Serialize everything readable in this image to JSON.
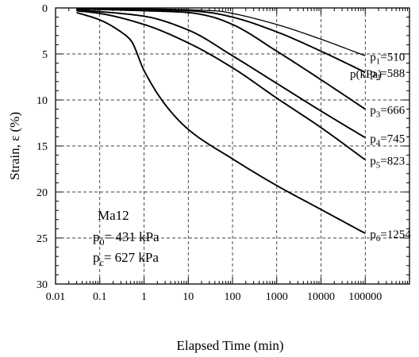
{
  "chart_data": {
    "type": "line",
    "xlabel": "Elapsed Time (min)",
    "ylabel": "Strain, ε (%)",
    "x_scale": "log",
    "xlim": [
      0.01,
      1000000
    ],
    "ylim": [
      0,
      30
    ],
    "y_inverted": true,
    "grid": "dashed",
    "x_ticks": [
      {
        "v": 0.01,
        "t": "0.01"
      },
      {
        "v": 0.1,
        "t": "0.1"
      },
      {
        "v": 1,
        "t": "1"
      },
      {
        "v": 10,
        "t": "10"
      },
      {
        "v": 100,
        "t": "100"
      },
      {
        "v": 1000,
        "t": "1000"
      },
      {
        "v": 10000,
        "t": "10000"
      },
      {
        "v": 100000,
        "t": "100000"
      }
    ],
    "y_ticks": [
      {
        "v": 0,
        "t": "0"
      },
      {
        "v": 5,
        "t": "5"
      },
      {
        "v": 10,
        "t": "10"
      },
      {
        "v": 15,
        "t": "15"
      },
      {
        "v": 20,
        "t": "20"
      },
      {
        "v": 25,
        "t": "25"
      },
      {
        "v": 30,
        "t": "30"
      }
    ],
    "legend_title": "p(kPa)",
    "series": [
      {
        "name": "p1=510",
        "sym": "p",
        "sub": "1",
        "val": "=510",
        "x": [
          0.03,
          1,
          10,
          50,
          100,
          1000,
          10000,
          100000
        ],
        "y": [
          0.1,
          0.1,
          0.2,
          0.35,
          0.6,
          1.8,
          3.4,
          5.2
        ]
      },
      {
        "name": "p2=588",
        "sym": "p",
        "sub": "2",
        "val": "=588",
        "x": [
          0.03,
          1,
          10,
          30,
          100,
          1000,
          10000,
          100000
        ],
        "y": [
          0.1,
          0.2,
          0.3,
          0.5,
          1.0,
          2.6,
          4.7,
          7.0
        ]
      },
      {
        "name": "p3=666",
        "sym": "p",
        "sub": "3",
        "val": "=666",
        "x": [
          0.03,
          1,
          10,
          30,
          100,
          1000,
          10000,
          100000
        ],
        "y": [
          0.1,
          0.3,
          0.5,
          0.9,
          1.8,
          4.7,
          7.8,
          11.0
        ]
      },
      {
        "name": "p4=745",
        "sym": "p",
        "sub": "4",
        "val": "=745",
        "x": [
          0.03,
          1,
          10,
          100,
          1000,
          10000,
          100000
        ],
        "y": [
          0.2,
          0.9,
          2.4,
          5.2,
          8.2,
          11.2,
          14.1
        ]
      },
      {
        "name": "p5=823",
        "sym": "p",
        "sub": "5",
        "val": "=823",
        "x": [
          0.03,
          0.1,
          1,
          10,
          100,
          1000,
          10000,
          100000
        ],
        "y": [
          0.3,
          0.6,
          1.8,
          3.8,
          6.5,
          9.8,
          13.0,
          16.5
        ]
      },
      {
        "name": "p6=1254",
        "sym": "p",
        "sub": "6",
        "val": "=1254",
        "x": [
          0.03,
          0.1,
          0.3,
          0.5,
          1,
          3,
          10,
          100,
          1000,
          10000,
          100000
        ],
        "y": [
          0.5,
          1.3,
          2.6,
          3.5,
          6.8,
          10.5,
          13.2,
          16.4,
          19.3,
          21.9,
          24.5
        ]
      }
    ],
    "annotations": {
      "sample": "Ma12",
      "p0": {
        "sym": "p",
        "sub": "0",
        "text": "= 431 kPa"
      },
      "pc": {
        "sym": "p",
        "sub": "c",
        "text": "= 627 kPa"
      }
    }
  }
}
